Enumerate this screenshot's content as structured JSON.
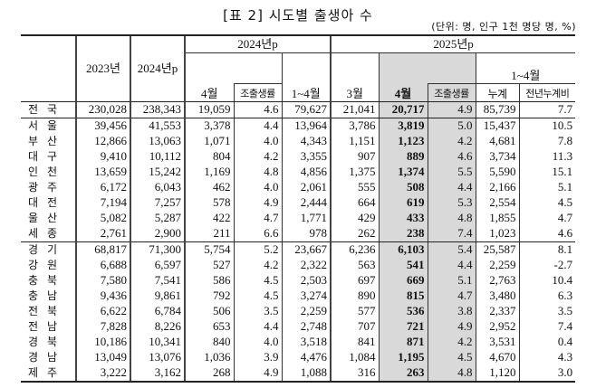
{
  "title": "[표 2] 시도별 출생아 수",
  "unit": "(단위: 명, 인구 1천 명당 명, %)",
  "header": {
    "y2023": "2023년",
    "y2024": "2024년p",
    "group2024": "2024년p",
    "group2025": "2025년p",
    "apr": "4월",
    "crude": "조출생률",
    "janapr": "1~4월",
    "mar": "3월",
    "apr2025": "4월",
    "crude2025": "조출생률",
    "janapr2025": "1~4월",
    "cumulative": "누계",
    "yoy": "전년누계비"
  },
  "rows": [
    {
      "region": "전국",
      "v": [
        "230,028",
        "238,343",
        "19,059",
        "4.6",
        "79,627",
        "21,041",
        "20,717",
        "4.9",
        "85,739",
        "7.7"
      ]
    },
    {
      "region": "서울",
      "v": [
        "39,456",
        "41,553",
        "3,378",
        "4.4",
        "13,964",
        "3,786",
        "3,819",
        "5.0",
        "15,437",
        "10.5"
      ]
    },
    {
      "region": "부산",
      "v": [
        "12,866",
        "13,063",
        "1,071",
        "4.0",
        "4,343",
        "1,151",
        "1,123",
        "4.2",
        "4,681",
        "7.8"
      ]
    },
    {
      "region": "대구",
      "v": [
        "9,410",
        "10,112",
        "804",
        "4.2",
        "3,355",
        "907",
        "889",
        "4.6",
        "3,734",
        "11.3"
      ]
    },
    {
      "region": "인천",
      "v": [
        "13,659",
        "15,242",
        "1,169",
        "4.8",
        "4,856",
        "1,375",
        "1,374",
        "5.5",
        "5,590",
        "15.1"
      ]
    },
    {
      "region": "광주",
      "v": [
        "6,172",
        "6,043",
        "462",
        "4.0",
        "2,061",
        "555",
        "508",
        "4.4",
        "2,166",
        "5.1"
      ]
    },
    {
      "region": "대전",
      "v": [
        "7,194",
        "7,257",
        "578",
        "4.9",
        "2,444",
        "664",
        "619",
        "5.3",
        "2,554",
        "4.5"
      ]
    },
    {
      "region": "울산",
      "v": [
        "5,082",
        "5,287",
        "422",
        "4.7",
        "1,771",
        "429",
        "433",
        "4.8",
        "1,855",
        "4.7"
      ]
    },
    {
      "region": "세종",
      "v": [
        "2,761",
        "2,900",
        "211",
        "6.6",
        "978",
        "262",
        "238",
        "7.4",
        "1,023",
        "4.6"
      ]
    },
    {
      "region": "경기",
      "v": [
        "68,817",
        "71,300",
        "5,754",
        "5.2",
        "23,667",
        "6,236",
        "6,103",
        "5.4",
        "25,587",
        "8.1"
      ]
    },
    {
      "region": "강원",
      "v": [
        "6,688",
        "6,597",
        "527",
        "4.2",
        "2,322",
        "563",
        "541",
        "4.4",
        "2,259",
        "-2.7"
      ]
    },
    {
      "region": "충북",
      "v": [
        "7,580",
        "7,541",
        "586",
        "4.5",
        "2,503",
        "697",
        "669",
        "5.1",
        "2,763",
        "10.4"
      ]
    },
    {
      "region": "충남",
      "v": [
        "9,436",
        "9,861",
        "792",
        "4.5",
        "3,274",
        "890",
        "815",
        "4.7",
        "3,480",
        "6.3"
      ]
    },
    {
      "region": "전북",
      "v": [
        "6,622",
        "6,784",
        "506",
        "3.5",
        "2,259",
        "577",
        "536",
        "3.8",
        "2,337",
        "3.5"
      ]
    },
    {
      "region": "전남",
      "v": [
        "7,828",
        "8,226",
        "653",
        "4.4",
        "2,748",
        "707",
        "721",
        "4.9",
        "2,952",
        "7.4"
      ]
    },
    {
      "region": "경북",
      "v": [
        "10,186",
        "10,341",
        "840",
        "4.0",
        "3,518",
        "841",
        "871",
        "4.2",
        "3,531",
        "0.4"
      ]
    },
    {
      "region": "경남",
      "v": [
        "13,049",
        "13,076",
        "1,036",
        "3.9",
        "4,476",
        "1,084",
        "1,195",
        "4.5",
        "4,670",
        "4.3"
      ]
    },
    {
      "region": "제주",
      "v": [
        "3,222",
        "3,162",
        "268",
        "4.9",
        "1,088",
        "316",
        "263",
        "4.8",
        "1,120",
        "3.0"
      ]
    }
  ]
}
